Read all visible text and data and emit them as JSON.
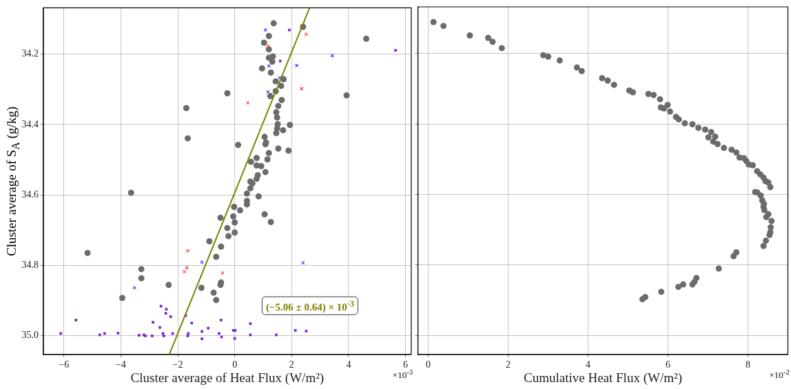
{
  "chart_data": [
    {
      "type": "scatter",
      "xlabel": "Cluster average of Heat Flux (W/m²)",
      "ylabel": "Cluster average of S$_{A}$ (g/kg)",
      "xlim": [
        -6.72,
        6.2
      ],
      "xticks": [
        -6,
        -4,
        -2,
        0,
        2,
        4,
        6
      ],
      "ylim": [
        35.054,
        34.068
      ],
      "yticks": [
        34.2,
        34.4,
        34.6,
        34.8,
        {
          "value": 35,
          "label": "35.0"
        }
      ],
      "grid": true,
      "legend": false,
      "series": [
        {
          "type": "scatter",
          "color": "#6b6b6b",
          "marker": "circle",
          "x": [
            1.37,
            2.4,
            1.2,
            1.03,
            1.2,
            1.34,
            1.2,
            1.32,
            0.96,
            1.27,
            1.72,
            1.44,
            1.63,
            1.44,
            1.25,
            1.65,
            1.53,
            1.46,
            1.49,
            1.51,
            1.94,
            1.49,
            1.7,
            1.46,
            1.05,
            1.1,
            1.08,
            0.12,
            1.53,
            1.89,
            1.2,
            0.77,
            0.57,
            1.15,
            0.77,
            0.93,
            1.08,
            0.81,
            0.77,
            0.55,
            0.62,
            0.55,
            0.43,
            0.84,
            0.43,
            0.43,
            -0.02,
            0.19,
            -0.05,
            -0.5,
            1.05,
            0,
            1.27,
            -0.26,
            0,
            -0.22,
            -0.89,
            -0.48,
            -0.65,
            -0.26,
            -1.7,
            -1.65,
            4.62,
            3.93,
            -3.64,
            -5.17,
            -3.28,
            -3.28,
            -2.32,
            -0.48,
            -0.5,
            -1.17,
            -0.74,
            -0.65,
            -3.95
          ],
          "values": [
            34.112,
            34.122,
            34.148,
            34.167,
            34.186,
            34.206,
            34.21,
            34.221,
            34.24,
            34.252,
            34.271,
            34.277,
            34.29,
            34.305,
            34.319,
            34.33,
            34.347,
            34.365,
            34.38,
            34.399,
            34.401,
            34.411,
            34.416,
            34.424,
            34.435,
            34.451,
            34.456,
            34.458,
            34.468,
            34.474,
            34.481,
            34.495,
            34.506,
            34.499,
            34.516,
            34.518,
            34.535,
            34.544,
            34.554,
            34.562,
            34.567,
            34.581,
            34.596,
            34.604,
            34.617,
            34.627,
            34.634,
            34.644,
            34.661,
            34.665,
            34.655,
            34.678,
            34.677,
            34.694,
            34.707,
            34.717,
            34.732,
            34.747,
            34.776,
            34.311,
            34.353,
            34.439,
            34.156,
            34.317,
            34.594,
            34.765,
            34.811,
            34.837,
            34.856,
            34.849,
            34.856,
            34.864,
            34.878,
            34.899,
            34.893
          ]
        },
        {
          "type": "scatter",
          "color": "#ff4040",
          "marker": "cross",
          "x": [
            2.51,
            1.17,
            2.35,
            0.46,
            -1.65,
            -1.68,
            -1.77,
            -0.43
          ],
          "values": [
            34.143,
            34.177,
            34.298,
            34.338,
            34.759,
            34.807,
            34.818,
            34.822
          ]
        },
        {
          "type": "scatter",
          "color": "#4040ff",
          "marker": "cross",
          "x": [
            1.08,
            1.2,
            1.58,
            2.18,
            3.43,
            1.17,
            -1.15,
            2.4,
            -3.52
          ],
          "values": [
            34.131,
            34.233,
            34.267,
            34.232,
            34.204,
            34.307,
            34.791,
            34.793,
            34.864
          ]
        },
        {
          "type": "scatter",
          "color": "#7a2ad0",
          "marker": "square",
          "x": [
            1.92,
            1.6,
            5.65,
            -6.11,
            -5.58,
            -4.74,
            -4.57,
            -4.1,
            -3.36,
            -3.19,
            -3.14,
            -2.9,
            -2.87,
            -2.63,
            -2.59,
            -2.52,
            -2.49,
            -2.4,
            -2.42,
            -2.25,
            -2.18,
            -1.72,
            -1.63,
            -1.65,
            -1.51,
            -1.15,
            -1.15,
            -0.93,
            -0.55,
            -0.48,
            -0.46,
            -0.05,
            0.02,
            0,
            0.55,
            0.55,
            1.46,
            2.13,
            2.51
          ],
          "values": [
            34.131,
            34.219,
            34.189,
            34.994,
            34.956,
            34.998,
            34.994,
            34.993,
            34.999,
            34.998,
            35.001,
            35.001,
            34.962,
            34.977,
            34.916,
            34.994,
            35.001,
            34.925,
            34.937,
            34.946,
            34.994,
            34.943,
            34.994,
            35.001,
            34.964,
            34.988,
            35.009,
            34.979,
            34.994,
            34.956,
            35.004,
            34.985,
            34.985,
            35.008,
            34.966,
            34.998,
            34.998,
            34.985,
            34.987
          ]
        },
        {
          "type": "line",
          "color": "#808000",
          "marker": "none",
          "x": [
            -2.3,
            2.63
          ],
          "values": [
            35.054,
            34.068
          ]
        }
      ],
      "annotations": [
        "(−5.06 ± 0.64) × 10$^{-3}$",
        "×10$^{-3}$"
      ]
    },
    {
      "type": "scatter",
      "xlabel": "Cumulative Heat Flux (W/m²)",
      "xlim": [
        -0.26,
        9.0
      ],
      "xticks": [
        0,
        2,
        4,
        6,
        8
      ],
      "ylim": [
        35.054,
        34.068
      ],
      "yticks": [
        34.2,
        34.4,
        34.6,
        34.8,
        35
      ],
      "tick_labels": "x",
      "grid": true,
      "legend": false,
      "series": [
        {
          "type": "scatter",
          "color": "#6b6b6b",
          "marker": "circle",
          "x": [
            0.13,
            0.38,
            1.04,
            1.5,
            1.61,
            1.84,
            2.88,
            3.0,
            3.29,
            3.72,
            3.84,
            4.35,
            4.49,
            4.65,
            5.03,
            5.12,
            5.51,
            5.64,
            5.8,
            5.99,
            5.82,
            5.9,
            6.05,
            6.2,
            6.27,
            6.42,
            6.61,
            6.76,
            6.93,
            7.08,
            7.18,
            7.01,
            7.13,
            7.24,
            7.4,
            7.59,
            7.71,
            7.79,
            7.9,
            7.96,
            8.02,
            8.12,
            8.23,
            8.31,
            8.39,
            8.44,
            8.51,
            8.56,
            8.18,
            8.23,
            8.32,
            8.36,
            8.4,
            8.39,
            8.41,
            8.51,
            8.46,
            8.59,
            8.57,
            8.56,
            8.54,
            8.45,
            8.39,
            7.71,
            7.64,
            7.27,
            6.71,
            6.66,
            6.61,
            6.38,
            6.26,
            5.83,
            5.43,
            5.36
          ],
          "values": [
            34.111,
            34.122,
            34.149,
            34.156,
            34.167,
            34.185,
            34.205,
            34.209,
            34.22,
            34.24,
            34.25,
            34.27,
            34.277,
            34.289,
            34.305,
            34.31,
            34.315,
            34.318,
            34.33,
            34.346,
            34.353,
            34.356,
            34.365,
            34.38,
            34.387,
            34.398,
            34.401,
            34.411,
            34.416,
            34.423,
            34.436,
            34.438,
            34.45,
            34.457,
            34.468,
            34.473,
            34.481,
            34.495,
            34.497,
            34.505,
            34.515,
            34.517,
            34.534,
            34.543,
            34.552,
            34.562,
            34.566,
            34.579,
            34.593,
            34.594,
            34.603,
            34.617,
            34.627,
            34.635,
            34.644,
            34.656,
            34.664,
            34.675,
            34.693,
            34.707,
            34.715,
            34.731,
            34.746,
            34.764,
            34.775,
            34.81,
            34.837,
            34.848,
            34.855,
            34.855,
            34.862,
            34.876,
            34.891,
            34.897
          ]
        }
      ],
      "annotations": [
        "×10$^{-2}$"
      ]
    }
  ]
}
